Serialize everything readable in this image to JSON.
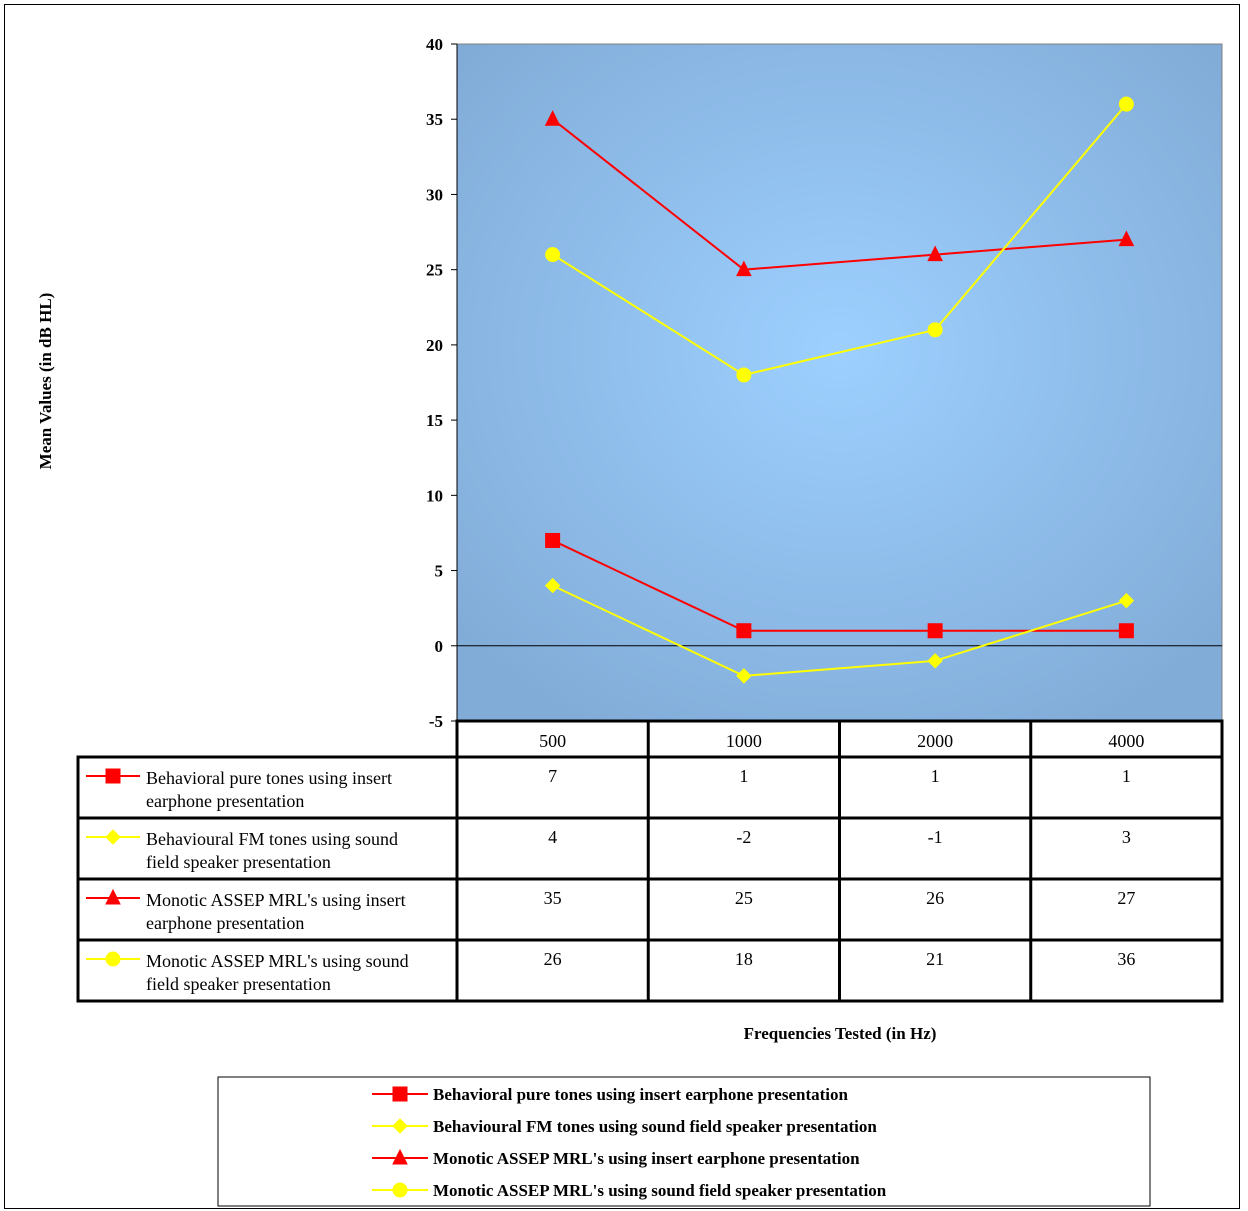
{
  "chart_data": {
    "type": "line",
    "title": "",
    "xlabel": "Frequencies Tested (in Hz)",
    "ylabel": "Mean Values (in dB HL)",
    "ylim": [
      -5,
      40
    ],
    "yticks": [
      "40",
      "35",
      "30",
      "25",
      "20",
      "15",
      "10",
      "5",
      "0",
      "-5"
    ],
    "categories": [
      "500",
      "1000",
      "2000",
      "4000"
    ],
    "grid": false,
    "legend_position": "bottom",
    "plot_background": "#94c6f4",
    "series": [
      {
        "name": "Behavioral pure tones using insert earphone presentation",
        "table_label_line1": "Behavioral pure tones using insert",
        "table_label_line2": "earphone presentation",
        "marker": "square",
        "color": "#ff0000",
        "values": [
          7,
          1,
          1,
          1
        ],
        "value_labels": [
          "7",
          "1",
          "1",
          "1"
        ]
      },
      {
        "name": "Behavioural FM tones using sound field speaker presentation",
        "table_label_line1": "Behavioural FM tones using sound",
        "table_label_line2": "field speaker presentation",
        "marker": "diamond",
        "color": "#ffff00",
        "values": [
          4,
          -2,
          -1,
          3
        ],
        "value_labels": [
          "4",
          "-2",
          "-1",
          "3"
        ]
      },
      {
        "name": "Monotic ASSEP MRL's using insert earphone presentation",
        "table_label_line1": "Monotic ASSEP MRL's using insert",
        "table_label_line2": "earphone presentation",
        "marker": "triangle",
        "color": "#ff0000",
        "values": [
          35,
          25,
          26,
          27
        ],
        "value_labels": [
          "35",
          "25",
          "26",
          "27"
        ]
      },
      {
        "name": "Monotic ASSEP MRL's using sound field speaker presentation",
        "table_label_line1": "Monotic ASSEP MRL's using sound",
        "table_label_line2": "field speaker presentation",
        "marker": "circle",
        "color": "#ffff00",
        "values": [
          26,
          18,
          21,
          36
        ],
        "value_labels": [
          "26",
          "18",
          "21",
          "36"
        ]
      }
    ]
  }
}
